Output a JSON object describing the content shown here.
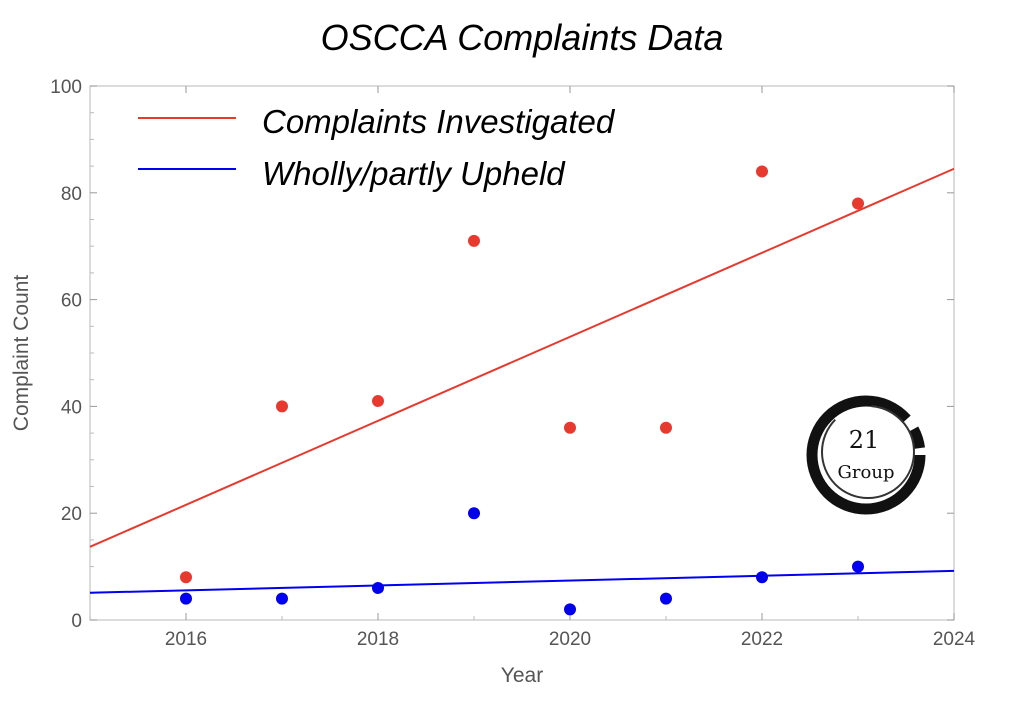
{
  "chart_data": {
    "type": "scatter",
    "title": "OSCCA Complaints Data",
    "xlabel": "Year",
    "ylabel": "Complaint Count",
    "xlim": [
      2015,
      2024
    ],
    "ylim": [
      0,
      100
    ],
    "xticks": [
      2016,
      2018,
      2020,
      2022,
      2024
    ],
    "yticks": [
      0,
      20,
      40,
      60,
      80,
      100
    ],
    "grid": false,
    "legend_position": "top-left",
    "series": [
      {
        "name": "Complaints Investigated",
        "color": "#e8392f",
        "x": [
          2016,
          2017,
          2018,
          2019,
          2020,
          2021,
          2022,
          2023
        ],
        "y": [
          8,
          40,
          41,
          71,
          36,
          36,
          84,
          78
        ],
        "trend_line": [
          [
            2015,
            13.7
          ],
          [
            2024,
            84.5
          ]
        ]
      },
      {
        "name": "Wholly/partly Upheld",
        "color": "#0000ee",
        "x": [
          2016,
          2017,
          2018,
          2019,
          2020,
          2021,
          2022,
          2023
        ],
        "y": [
          4,
          4,
          6,
          20,
          2,
          4,
          8,
          10
        ],
        "trend_line": [
          [
            2015,
            5.1
          ],
          [
            2024,
            9.2
          ]
        ]
      }
    ]
  },
  "logo": {
    "number": "21",
    "word": "Group"
  }
}
